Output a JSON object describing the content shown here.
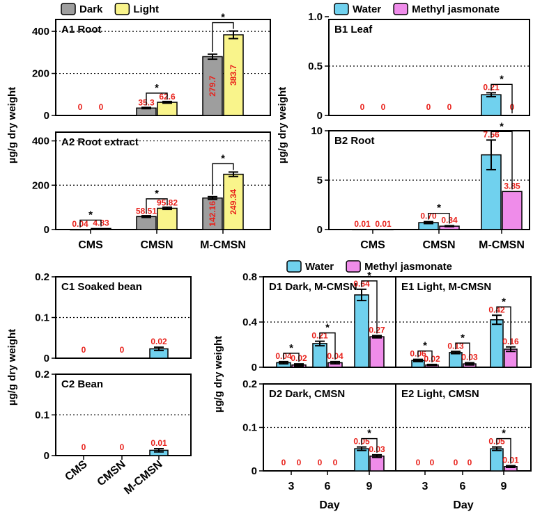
{
  "chart_data": {
    "type": "bar",
    "ylabel": "µg/g dry weight",
    "legends": {
      "A": {
        "series": [
          {
            "name": "Dark",
            "color": "#9e9e9e"
          },
          {
            "name": "Light",
            "color": "#f9f48b"
          }
        ]
      },
      "B": {
        "series": [
          {
            "name": "Water",
            "color": "#70d1ee"
          },
          {
            "name": "Methyl jasmonate",
            "color": "#ef8cea"
          }
        ]
      },
      "DE": {
        "series": [
          {
            "name": "Water",
            "color": "#70d1ee"
          },
          {
            "name": "Methyl jasmonate",
            "color": "#ef8cea"
          }
        ]
      }
    },
    "panels": [
      {
        "id": "A1",
        "title": "A1  Root",
        "ylim": [
          0,
          450
        ],
        "yticks": [
          {
            "v": 0,
            "label": "0"
          },
          {
            "v": 200,
            "label": "200"
          },
          {
            "v": 400,
            "label": "400"
          }
        ],
        "grid": [
          200,
          400
        ],
        "categories": [
          "CMS",
          "CMSN",
          "M-CMSN"
        ],
        "show_categories": false,
        "series": [
          {
            "name": "Dark",
            "color": "#9e9e9e",
            "values": [
              0,
              35.3,
              279.7
            ],
            "errors": [
              0,
              3,
              12
            ],
            "labels": [
              "0",
              "35.3",
              "279.7"
            ]
          },
          {
            "name": "Light",
            "color": "#f9f48b",
            "values": [
              0,
              62.6,
              383.7
            ],
            "errors": [
              0,
              4,
              18
            ],
            "labels": [
              "0",
              "62.6",
              "383.7"
            ]
          }
        ],
        "significance": [
          1,
          2
        ]
      },
      {
        "id": "A2",
        "title": "A2  Root extract",
        "ylim": [
          0,
          430
        ],
        "yticks": [
          {
            "v": 0,
            "label": "0"
          },
          {
            "v": 200,
            "label": "200"
          },
          {
            "v": 400,
            "label": "400"
          }
        ],
        "grid": [
          200,
          400
        ],
        "categories": [
          "CMS",
          "CMSN",
          "M-CMSN"
        ],
        "show_categories": true,
        "series": [
          {
            "name": "Dark",
            "color": "#9e9e9e",
            "values": [
              0.04,
              58.51,
              142.16
            ],
            "errors": [
              0,
              4,
              6
            ],
            "labels": [
              "0.04",
              "58.51",
              "142.16"
            ]
          },
          {
            "name": "Light",
            "color": "#f9f48b",
            "values": [
              4.83,
              95.82,
              249.34
            ],
            "errors": [
              0,
              5,
              10
            ],
            "labels": [
              "4.83",
              "95.82",
              "249.34"
            ]
          }
        ],
        "significance": [
          0,
          1,
          2
        ]
      },
      {
        "id": "B1",
        "title": "B1  Leaf",
        "ylim": [
          0,
          1.0
        ],
        "yticks": [
          {
            "v": 0,
            "label": "0"
          },
          {
            "v": 0.5,
            "label": "0.5"
          },
          {
            "v": 1.0,
            "label": "1.0"
          }
        ],
        "grid": [
          0.5
        ],
        "categories": [
          "CMS",
          "CMSN",
          "M-CMSN"
        ],
        "show_categories": false,
        "series": [
          {
            "name": "Water",
            "color": "#70d1ee",
            "values": [
              0,
              0,
              0.21
            ],
            "errors": [
              0,
              0,
              0.02
            ],
            "labels": [
              "0",
              "0",
              "0.21"
            ]
          },
          {
            "name": "Methyl jasmonate",
            "color": "#ef8cea",
            "values": [
              0,
              0,
              0
            ],
            "errors": [
              0,
              0,
              0
            ],
            "labels": [
              "0",
              "0",
              "0"
            ]
          }
        ],
        "significance": [
          2
        ]
      },
      {
        "id": "B2",
        "title": "B2  Root",
        "ylim": [
          0,
          10
        ],
        "yticks": [
          {
            "v": 0,
            "label": "0"
          },
          {
            "v": 5,
            "label": "5"
          },
          {
            "v": 10,
            "label": "10"
          }
        ],
        "grid": [
          5
        ],
        "categories": [
          "CMS",
          "CMSN",
          "M-CMSN"
        ],
        "show_categories": true,
        "series": [
          {
            "name": "Water",
            "color": "#70d1ee",
            "values": [
              0.01,
              0.7,
              7.56
            ],
            "errors": [
              0,
              0.1,
              1.5
            ],
            "labels": [
              "0.01",
              "0.70",
              "7.56"
            ]
          },
          {
            "name": "Methyl jasmonate",
            "color": "#ef8cea",
            "values": [
              0.01,
              0.34,
              3.85
            ],
            "errors": [
              0,
              0.05,
              0
            ],
            "labels": [
              "0.01",
              "0.34",
              "3.85"
            ]
          }
        ],
        "significance": [
          1,
          2
        ]
      },
      {
        "id": "C1",
        "title": "C1  Soaked bean",
        "ylim": [
          0,
          0.2
        ],
        "yticks": [
          {
            "v": 0,
            "label": "0"
          },
          {
            "v": 0.1,
            "label": "0.1"
          },
          {
            "v": 0.2,
            "label": "0.2"
          }
        ],
        "grid": [
          0.1
        ],
        "categories": [
          "CMS",
          "CMSN",
          "M-CMSN"
        ],
        "show_categories": false,
        "series": [
          {
            "name": "Water",
            "color": "#70d1ee",
            "values": [
              0,
              0,
              0.023
            ],
            "errors": [
              0,
              0,
              0.004
            ],
            "labels": [
              "0",
              "0",
              "0.02"
            ]
          }
        ],
        "significance": []
      },
      {
        "id": "C2",
        "title": "C2  Bean",
        "ylim": [
          0,
          0.2
        ],
        "yticks": [
          {
            "v": 0,
            "label": "0"
          },
          {
            "v": 0.1,
            "label": "0.1"
          },
          {
            "v": 0.2,
            "label": "0.2"
          }
        ],
        "grid": [
          0.1
        ],
        "categories": [
          "CMS",
          "CMSN",
          "M-CMSN"
        ],
        "show_categories": true,
        "rotated_categories": true,
        "series": [
          {
            "name": "Water",
            "color": "#70d1ee",
            "values": [
              0,
              0,
              0.013
            ],
            "errors": [
              0,
              0,
              0.004
            ],
            "labels": [
              "0",
              "0",
              "0.01"
            ]
          }
        ],
        "significance": []
      },
      {
        "id": "D1",
        "title": "D1  Dark, M-CMSN",
        "ylim": [
          0,
          0.8
        ],
        "yticks": [
          {
            "v": 0,
            "label": "0"
          },
          {
            "v": 0.4,
            "label": "0.4"
          },
          {
            "v": 0.8,
            "label": "0.8"
          }
        ],
        "grid": [
          0.4
        ],
        "categories": [
          "3",
          "6",
          "9"
        ],
        "show_categories": false,
        "series": [
          {
            "name": "Water",
            "color": "#70d1ee",
            "values": [
              0.04,
              0.21,
              0.64
            ],
            "errors": [
              0.01,
              0.02,
              0.05
            ],
            "labels": [
              "0.04",
              "0.21",
              "0.64"
            ]
          },
          {
            "name": "Methyl jasmonate",
            "color": "#ef8cea",
            "values": [
              0.02,
              0.04,
              0.27
            ],
            "errors": [
              0.01,
              0.01,
              0.01
            ],
            "labels": [
              "0.02",
              "0.04",
              "0.27"
            ]
          }
        ],
        "significance": [
          0,
          1,
          2
        ]
      },
      {
        "id": "E1",
        "title": "E1  Light, M-CMSN",
        "ylim": [
          0,
          0.8
        ],
        "yticks": [],
        "grid": [
          0.4
        ],
        "categories": [
          "3",
          "6",
          "9"
        ],
        "show_categories": false,
        "series": [
          {
            "name": "Water",
            "color": "#70d1ee",
            "values": [
              0.06,
              0.13,
              0.42
            ],
            "errors": [
              0.01,
              0.01,
              0.04
            ],
            "labels": [
              "0.06",
              "0.13",
              "0.42"
            ]
          },
          {
            "name": "Methyl jasmonate",
            "color": "#ef8cea",
            "values": [
              0.02,
              0.03,
              0.16
            ],
            "errors": [
              0.005,
              0.01,
              0.02
            ],
            "labels": [
              "0.02",
              "0.03",
              "0.16"
            ]
          }
        ],
        "significance": [
          0,
          1,
          2
        ]
      },
      {
        "id": "D2",
        "title": "D2  Dark, CMSN",
        "ylim": [
          0,
          0.2
        ],
        "yticks": [
          {
            "v": 0,
            "label": "0"
          },
          {
            "v": 0.1,
            "label": "0.1"
          },
          {
            "v": 0.2,
            "label": "0.2"
          }
        ],
        "grid": [
          0.1
        ],
        "categories": [
          "3",
          "6",
          "9"
        ],
        "show_categories": true,
        "xlabel": "Day",
        "series": [
          {
            "name": "Water",
            "color": "#70d1ee",
            "values": [
              0,
              0,
              0.051
            ],
            "errors": [
              0,
              0,
              0.004
            ],
            "labels": [
              "0",
              "0",
              "0.05"
            ]
          },
          {
            "name": "Methyl jasmonate",
            "color": "#ef8cea",
            "values": [
              0,
              0,
              0.034
            ],
            "errors": [
              0,
              0,
              0.003
            ],
            "labels": [
              "0",
              "0",
              "0.03"
            ]
          }
        ],
        "significance": [
          2
        ]
      },
      {
        "id": "E2",
        "title": "E2  Light, CMSN",
        "ylim": [
          0,
          0.2
        ],
        "yticks": [],
        "grid": [
          0.1
        ],
        "categories": [
          "3",
          "6",
          "9"
        ],
        "show_categories": true,
        "xlabel": "Day",
        "series": [
          {
            "name": "Water",
            "color": "#70d1ee",
            "values": [
              0,
              0,
              0.051
            ],
            "errors": [
              0,
              0,
              0.004
            ],
            "labels": [
              "0",
              "0",
              "0.05"
            ]
          },
          {
            "name": "Methyl jasmonate",
            "color": "#ef8cea",
            "values": [
              0,
              0,
              0.01
            ],
            "errors": [
              0,
              0,
              0.002
            ],
            "labels": [
              "0",
              "0",
              "0.01"
            ]
          }
        ],
        "significance": [
          2
        ]
      }
    ]
  }
}
